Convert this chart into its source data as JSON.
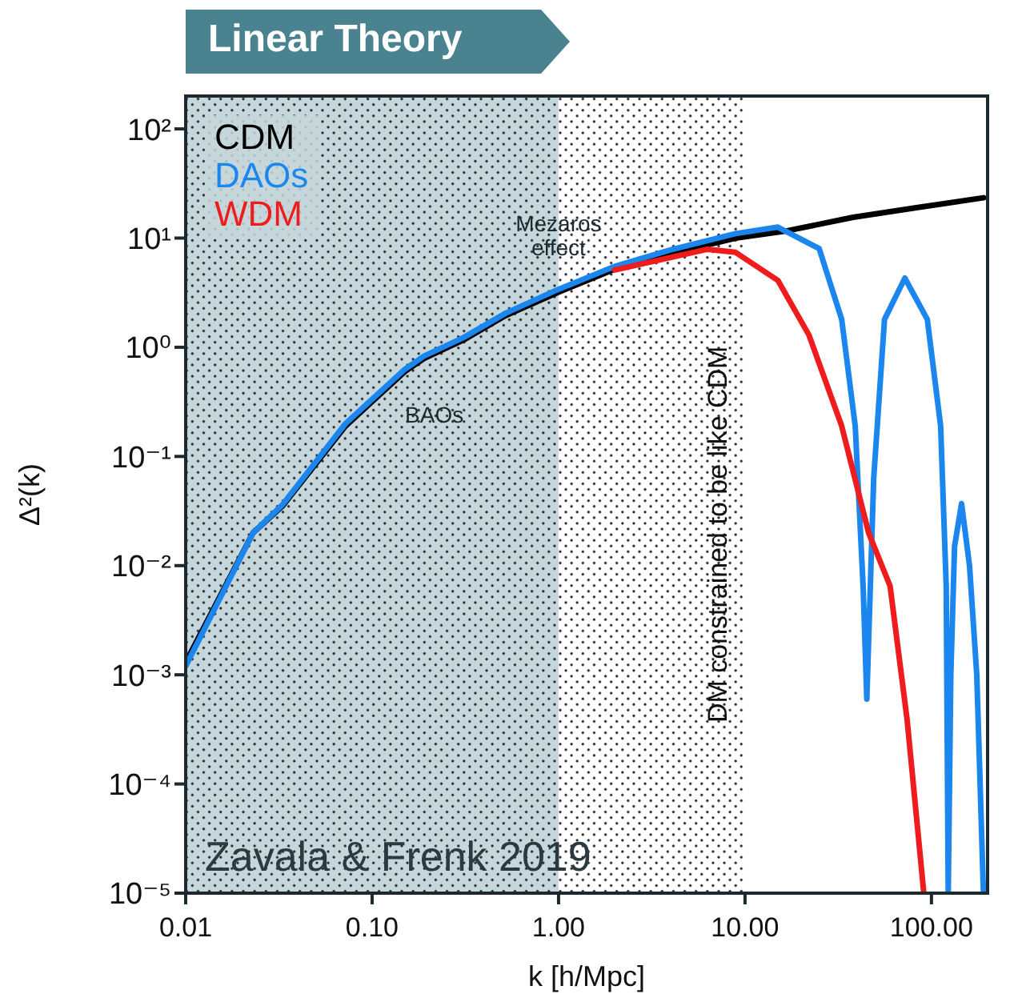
{
  "chart_data": {
    "type": "line",
    "title": "Linear Theory",
    "xlabel": "k [h/Mpc]",
    "ylabel": "Δ²(k)",
    "log": "xy",
    "xlim": [
      0.01,
      200
    ],
    "ylim": [
      1e-05,
      200
    ],
    "xticks": [
      0.01,
      {
        "value": 0.1,
        "label": "0.10"
      },
      {
        "value": 1,
        "label": "1.00"
      },
      {
        "value": 10,
        "label": "10.00"
      },
      {
        "value": 100,
        "label": "100.00"
      }
    ],
    "yticks": [
      {
        "value": 1e-05,
        "label": "10⁻⁵"
      },
      {
        "value": 0.0001,
        "label": "10⁻⁴"
      },
      {
        "value": 0.001,
        "label": "10⁻³"
      },
      {
        "value": 0.01,
        "label": "10⁻²"
      },
      {
        "value": 0.1,
        "label": "10⁻¹"
      },
      {
        "value": 1,
        "label": "10⁰"
      },
      {
        "value": 10,
        "label": "10¹"
      },
      {
        "value": 100,
        "label": "10²"
      }
    ],
    "legend": "top left",
    "marker": "none",
    "line_style": "solid",
    "series": [
      {
        "name": "CDM",
        "color": "#000000",
        "x": [
          0.01,
          0.023,
          0.033,
          0.072,
          0.15,
          0.19,
          0.31,
          0.52,
          1.0,
          2.0,
          4.0,
          8.9,
          17,
          38,
          83,
          190
        ],
        "values": [
          0.0013,
          0.02,
          0.035,
          0.19,
          0.6,
          0.79,
          1.17,
          1.95,
          3.2,
          5.2,
          7.2,
          10,
          11.7,
          15.5,
          19,
          23.4
        ]
      },
      {
        "name": "DAOs",
        "color": "#1a86ee",
        "x": [
          0.01,
          0.023,
          0.033,
          0.072,
          0.15,
          0.19,
          0.31,
          0.52,
          1.0,
          2.0,
          4.0,
          8.9,
          15,
          25,
          33,
          39,
          43,
          45,
          49,
          56,
          72,
          95,
          112,
          120,
          123,
          127,
          133,
          145,
          160,
          175,
          190
        ],
        "values": [
          0.0012,
          0.02,
          0.036,
          0.2,
          0.63,
          0.83,
          1.23,
          2.05,
          3.4,
          5.5,
          7.8,
          11,
          12.6,
          8,
          1.8,
          0.19,
          0.0065,
          0.0006,
          0.063,
          1.8,
          4.3,
          1.8,
          0.19,
          0.0065,
          1e-05,
          0.001,
          0.015,
          0.037,
          0.01,
          0.001,
          1e-05
        ]
      },
      {
        "name": "WDM",
        "color": "#ee1c1c",
        "x": [
          2.0,
          6.3,
          8.9,
          15,
          22,
          33,
          46,
          60,
          74,
          91
        ],
        "values": [
          5.1,
          7.9,
          7.4,
          4.1,
          1.3,
          0.19,
          0.02,
          0.0065,
          0.00039,
          1e-05
        ]
      }
    ],
    "bands": [
      {
        "axis": "x",
        "from": 0.01,
        "to": 1,
        "color": "#c5d7dc"
      },
      {
        "axis": "x",
        "from": 1,
        "to": 10,
        "color": "#ffffff"
      }
    ],
    "annotations": [
      {
        "text": "Mezaros effect",
        "x": 1.0,
        "y": 3.2
      },
      "BAOs",
      "DM constrained to be like CDM",
      "Zavala & Frenk 2019"
    ]
  }
}
